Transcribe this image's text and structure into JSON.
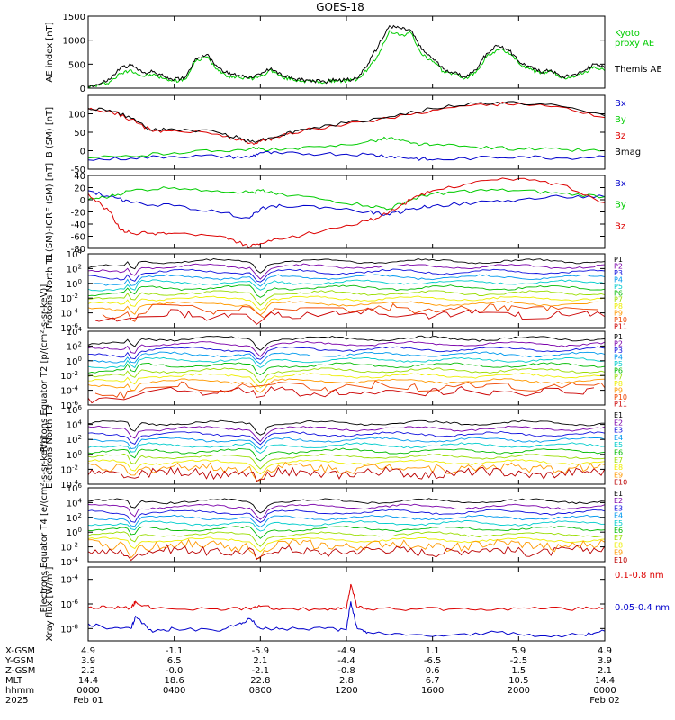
{
  "title": "GOES-18",
  "colors": {
    "black": "#000000",
    "green": "#00cc00",
    "red": "#dd0000",
    "blue": "#0000cc"
  },
  "chart_data": [
    {
      "type": "line",
      "ylabel": "AE index [nT]",
      "ylim": [
        0,
        1500
      ],
      "ytick_labels": [
        "0",
        "500",
        "1000",
        "1500"
      ],
      "ytick_values": [
        0,
        500,
        1000,
        1500
      ],
      "series": [
        {
          "name": "Kyoto proxy AE",
          "color": "#00cc00",
          "legend": "Kyoto\nproxy AE",
          "x": [
            0,
            0.5,
            1,
            1.5,
            2,
            2.5,
            3,
            3.5,
            4,
            4.5,
            5,
            5.5,
            6,
            6.5,
            7,
            7.5,
            8,
            8.5,
            9,
            9.5,
            10,
            10.5,
            11,
            11.5,
            12,
            12.5,
            13,
            13.5,
            14,
            14.5,
            15,
            15.5,
            16,
            16.5,
            17,
            17.5,
            18,
            18.5,
            19,
            19.5,
            20,
            20.5,
            21,
            21.5,
            22,
            22.5,
            23,
            23.5,
            24
          ],
          "y": [
            30,
            60,
            130,
            300,
            380,
            250,
            280,
            200,
            150,
            180,
            560,
            650,
            400,
            250,
            230,
            200,
            240,
            380,
            230,
            180,
            150,
            140,
            120,
            160,
            150,
            180,
            400,
            700,
            1200,
            1100,
            1150,
            700,
            550,
            350,
            300,
            200,
            320,
            650,
            800,
            760,
            520,
            400,
            300,
            350,
            200,
            250,
            300,
            450,
            360
          ]
        },
        {
          "name": "Themis AE",
          "color": "#000000",
          "legend": "Themis AE",
          "x": [
            0,
            0.5,
            1,
            1.5,
            2,
            2.5,
            3,
            3.5,
            4,
            4.5,
            5,
            5.5,
            6,
            6.5,
            7,
            7.5,
            8,
            8.5,
            9,
            9.5,
            10,
            10.5,
            11,
            11.5,
            12,
            12.5,
            13,
            13.5,
            14,
            14.5,
            15,
            15.5,
            16,
            16.5,
            17,
            17.5,
            18,
            18.5,
            19,
            19.5,
            20,
            20.5,
            21,
            21.5,
            22,
            22.5,
            23,
            23.5,
            24
          ],
          "y": [
            40,
            80,
            180,
            420,
            480,
            330,
            340,
            250,
            180,
            220,
            620,
            700,
            450,
            300,
            270,
            230,
            280,
            420,
            260,
            200,
            170,
            150,
            130,
            180,
            170,
            200,
            500,
            900,
            1300,
            1250,
            1200,
            800,
            620,
            400,
            320,
            230,
            380,
            720,
            880,
            820,
            560,
            450,
            340,
            380,
            230,
            280,
            350,
            500,
            420
          ]
        }
      ]
    },
    {
      "type": "line",
      "ylabel": "B (SM) [nT]",
      "ylim": [
        -50,
        150
      ],
      "ytick_labels": [
        "-50",
        "0",
        "50",
        "100"
      ],
      "ytick_values": [
        -50,
        0,
        50,
        100
      ],
      "series": [
        {
          "name": "Bx",
          "color": "#0000cc",
          "legend": "Bx",
          "x": [
            0,
            2,
            4,
            6,
            7.5,
            8,
            9,
            11,
            13,
            14,
            15,
            16,
            18,
            20,
            22,
            24
          ],
          "y": [
            -25,
            -20,
            -15,
            -15,
            -18,
            -5,
            -8,
            -8,
            -10,
            -15,
            -20,
            -25,
            -20,
            -15,
            -20,
            -15
          ]
        },
        {
          "name": "By",
          "color": "#00cc00",
          "legend": "By",
          "x": [
            0,
            2,
            4,
            6,
            7.5,
            8,
            9,
            11,
            13,
            14,
            15,
            16,
            18,
            20,
            22,
            24
          ],
          "y": [
            -20,
            -15,
            -5,
            0,
            5,
            5,
            2,
            10,
            25,
            35,
            20,
            15,
            10,
            5,
            3,
            0
          ]
        },
        {
          "name": "Bz",
          "color": "#dd0000",
          "legend": "Bz",
          "x": [
            0,
            1,
            2,
            3,
            4,
            6,
            7,
            7.5,
            8,
            9,
            10,
            12,
            14,
            16,
            18,
            20,
            22,
            24
          ],
          "y": [
            112,
            108,
            85,
            52,
            55,
            45,
            30,
            20,
            25,
            40,
            55,
            72,
            88,
            110,
            125,
            128,
            118,
            90
          ]
        },
        {
          "name": "Bmag",
          "color": "#000000",
          "legend": "Bmag",
          "x": [
            0,
            1,
            2,
            3,
            4,
            6,
            7,
            7.5,
            8,
            9,
            10,
            12,
            14,
            16,
            18,
            20,
            22,
            24
          ],
          "y": [
            115,
            110,
            88,
            55,
            58,
            50,
            35,
            25,
            28,
            43,
            58,
            75,
            92,
            114,
            128,
            130,
            120,
            95
          ]
        }
      ]
    },
    {
      "type": "line",
      "ylabel": "B (SM)-IGRF (SM) [nT]",
      "ylim": [
        -80,
        40
      ],
      "ytick_labels": [
        "-80",
        "-60",
        "-40",
        "-20",
        "0",
        "20",
        "40"
      ],
      "ytick_values": [
        -80,
        -60,
        -40,
        -20,
        0,
        20,
        40
      ],
      "series": [
        {
          "name": "Bx",
          "color": "#0000cc",
          "legend": "Bx",
          "x": [
            0,
            1,
            2,
            4,
            6,
            7.5,
            8,
            9,
            11,
            13,
            14,
            15,
            16,
            18,
            20,
            22,
            24
          ],
          "y": [
            15,
            5,
            -5,
            -10,
            -20,
            -30,
            -15,
            -10,
            -12,
            -20,
            -25,
            -15,
            -10,
            -5,
            0,
            5,
            5
          ]
        },
        {
          "name": "By",
          "color": "#00cc00",
          "legend": "By",
          "x": [
            0,
            1,
            2,
            4,
            6,
            7.5,
            8,
            9,
            11,
            13,
            14,
            15,
            16,
            18,
            20,
            22,
            24
          ],
          "y": [
            0,
            5,
            15,
            20,
            15,
            12,
            15,
            10,
            0,
            -10,
            -15,
            0,
            10,
            15,
            15,
            10,
            5
          ]
        },
        {
          "name": "Bz",
          "color": "#dd0000",
          "legend": "Bz",
          "x": [
            0,
            1,
            1.5,
            2,
            3,
            4,
            6,
            7,
            7.5,
            8,
            9,
            11,
            13,
            14,
            15,
            16,
            18,
            20,
            22,
            24
          ],
          "y": [
            10,
            -20,
            -50,
            -55,
            -55,
            -55,
            -60,
            -70,
            -78,
            -72,
            -65,
            -50,
            -35,
            -20,
            0,
            15,
            30,
            35,
            25,
            -5
          ]
        }
      ]
    },
    {
      "type": "line",
      "ylabel": "Protons North T1",
      "yscale": "log",
      "ytick_labels": [
        "10^4",
        "10^2",
        "10^0",
        "10^-2",
        "10^-4",
        "10^-6"
      ],
      "ytick_values": [
        4,
        2,
        0,
        -2,
        -4,
        -6
      ],
      "ylim": [
        -6,
        4
      ],
      "series_names": [
        "P1",
        "P2",
        "P3",
        "P4",
        "P5",
        "P6",
        "P7",
        "P8",
        "P9",
        "P10",
        "P11"
      ]
    },
    {
      "type": "line",
      "ylabel": "Protons Equator T2 [p/(cm²-s-sr-keV)]",
      "yscale": "log",
      "ytick_labels": [
        "10^4",
        "10^2",
        "10^0",
        "10^-2",
        "10^-4",
        "10^-6"
      ],
      "ytick_values": [
        4,
        2,
        0,
        -2,
        -4,
        -6
      ],
      "ylim": [
        -6,
        4
      ],
      "series_names": [
        "P1",
        "P2",
        "P3",
        "P4",
        "P5",
        "P6",
        "P7",
        "P8",
        "P9",
        "P10",
        "P11"
      ]
    },
    {
      "type": "line",
      "ylabel": "Electrons North T3",
      "yscale": "log",
      "ytick_labels": [
        "10^6",
        "10^4",
        "10^2",
        "10^0",
        "10^-2",
        "10^-4"
      ],
      "ytick_values": [
        6,
        4,
        2,
        0,
        -2,
        -4
      ],
      "ylim": [
        -4,
        6
      ],
      "series_names": [
        "E1",
        "E2",
        "E3",
        "E4",
        "E5",
        "E6",
        "E7",
        "E8",
        "E9",
        "E10"
      ]
    },
    {
      "type": "line",
      "ylabel": "Electrons Equator T4 [e/(cm²-s-sr-keV)]",
      "yscale": "log",
      "ytick_labels": [
        "10^6",
        "10^4",
        "10^2",
        "10^0",
        "10^-2",
        "10^-4"
      ],
      "ytick_values": [
        6,
        4,
        2,
        0,
        -2,
        -4
      ],
      "ylim": [
        -4,
        6
      ],
      "series_names": [
        "E1",
        "E2",
        "E3",
        "E4",
        "E5",
        "E6",
        "E7",
        "E8",
        "E9",
        "E10"
      ]
    },
    {
      "type": "line",
      "ylabel": "Xray flux [W/m²]",
      "yscale": "log",
      "ytick_labels": [
        "10^-4",
        "10^-6",
        "10^-8"
      ],
      "ytick_values": [
        -4,
        -6,
        -8
      ],
      "ylim": [
        -9,
        -3
      ],
      "series": [
        {
          "name": "0.1-0.8 nm",
          "color": "#dd0000",
          "legend": "0.1-0.8 nm",
          "x": [
            0,
            1,
            2,
            2.2,
            3,
            6,
            7.5,
            8,
            9,
            11,
            12,
            12.2,
            12.5,
            13,
            15,
            17,
            19,
            21,
            23,
            24
          ],
          "y": [
            -6.3,
            -6.3,
            -6.3,
            -5.8,
            -6.4,
            -6.4,
            -6.4,
            -6.2,
            -6.4,
            -6.4,
            -6.4,
            -4.4,
            -6.3,
            -6.4,
            -6.4,
            -6.4,
            -6.4,
            -6.4,
            -6.4,
            -6.3
          ]
        },
        {
          "name": "0.05-0.4 nm",
          "color": "#0000cc",
          "legend": "0.05-0.4 nm",
          "x": [
            0,
            1,
            2,
            2.2,
            3,
            4,
            6,
            7,
            7.5,
            8,
            9,
            11,
            12,
            12.2,
            12.5,
            13,
            15,
            17,
            19,
            21,
            23,
            24
          ],
          "y": [
            -7.6,
            -8.0,
            -8.0,
            -7.0,
            -8.3,
            -8.0,
            -8.2,
            -7.6,
            -7.2,
            -8.0,
            -8.0,
            -8.0,
            -8.1,
            -5.8,
            -8.0,
            -8.3,
            -8.5,
            -8.5,
            -8.3,
            -8.6,
            -8.5,
            -8.2
          ]
        }
      ]
    }
  ],
  "footer": {
    "row_labels": [
      "X-GSM",
      "Y-GSM",
      "Z-GSM",
      "MLT",
      "hhmm",
      "2025"
    ],
    "columns": [
      {
        "values": [
          "4.9",
          "3.9",
          "2.2",
          "14.4",
          "0000",
          "Feb 01"
        ]
      },
      {
        "values": [
          "-1.1",
          "6.5",
          "-0.0",
          "18.6",
          "0400",
          ""
        ]
      },
      {
        "values": [
          "-5.9",
          "2.1",
          "-2.1",
          "22.8",
          "0800",
          ""
        ]
      },
      {
        "values": [
          "-4.9",
          "-4.4",
          "-0.8",
          "2.8",
          "1200",
          ""
        ]
      },
      {
        "values": [
          "1.1",
          "-6.5",
          "0.6",
          "6.7",
          "1600",
          ""
        ]
      },
      {
        "values": [
          "5.9",
          "-2.5",
          "1.5",
          "10.5",
          "2000",
          ""
        ]
      },
      {
        "values": [
          "4.9",
          "3.9",
          "2.1",
          "14.4",
          "0000",
          "Feb 02"
        ]
      }
    ]
  }
}
